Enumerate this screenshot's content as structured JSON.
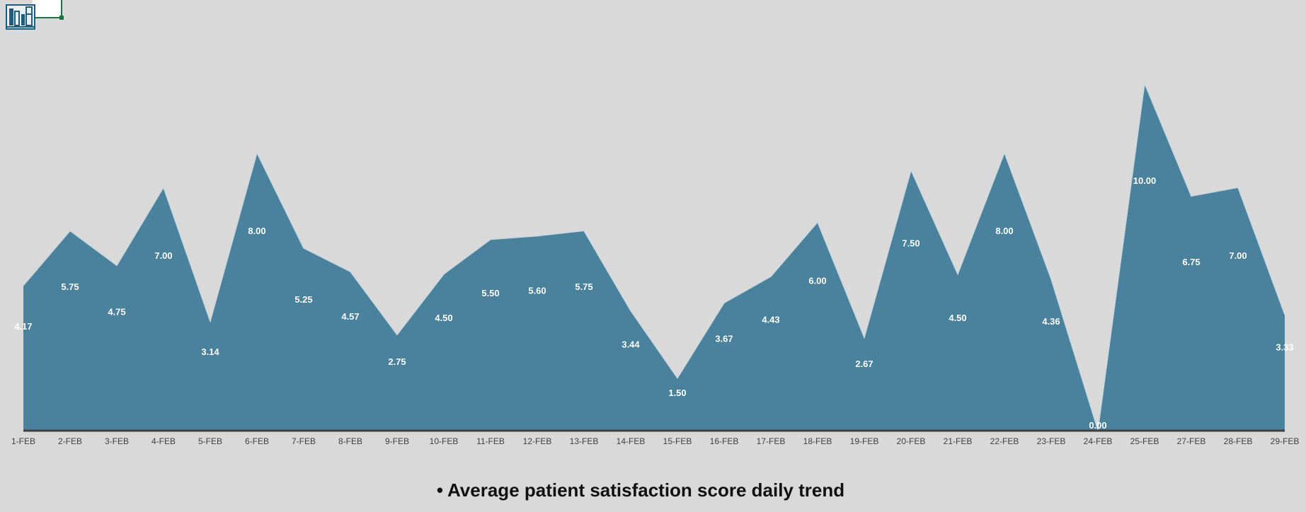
{
  "colors": {
    "background": "#d9d9d9",
    "area_fill": "#4a819c",
    "area_stroke": "#c9d8e0",
    "axis_line": "#404040",
    "data_label": "#ffffff",
    "tick_label": "#404040",
    "icon": "#1f5c80"
  },
  "icons": {
    "app_icon": "bookshelf-icon"
  },
  "chart_data": {
    "type": "area",
    "categories": [
      "1-FEB",
      "2-FEB",
      "3-FEB",
      "4-FEB",
      "5-FEB",
      "6-FEB",
      "7-FEB",
      "8-FEB",
      "9-FEB",
      "10-FEB",
      "11-FEB",
      "12-FEB",
      "13-FEB",
      "14-FEB",
      "15-FEB",
      "16-FEB",
      "17-FEB",
      "18-FEB",
      "19-FEB",
      "20-FEB",
      "21-FEB",
      "22-FEB",
      "23-FEB",
      "24-FEB",
      "25-FEB",
      "27-FEB",
      "28-FEB",
      "29-FEB"
    ],
    "series": [
      {
        "name": "Average patient satisfaction score daily trend",
        "values": [
          4.17,
          5.75,
          4.75,
          7.0,
          3.14,
          8.0,
          5.25,
          4.57,
          2.75,
          4.5,
          5.5,
          5.6,
          5.75,
          3.44,
          1.5,
          3.67,
          4.43,
          6.0,
          2.67,
          7.5,
          4.5,
          8.0,
          4.36,
          0.0,
          10.0,
          6.75,
          7.0,
          3.33
        ],
        "labels": [
          "4.17",
          "5.75",
          "4.75",
          "7.00",
          "3.14",
          "8.00",
          "5.25",
          "4.57",
          "2.75",
          "4.50",
          "5.50",
          "5.60",
          "5.75",
          "3.44",
          "1.50",
          "3.67",
          "4.43",
          "6.00",
          "2.67",
          "7.50",
          "4.50",
          "8.00",
          "4.36",
          "0.00",
          "10.00",
          "6.75",
          "7.00",
          "3.33"
        ]
      }
    ],
    "ylim": [
      0,
      10
    ],
    "grid": false,
    "legend_position": "bottom",
    "legend_marker": "•"
  }
}
